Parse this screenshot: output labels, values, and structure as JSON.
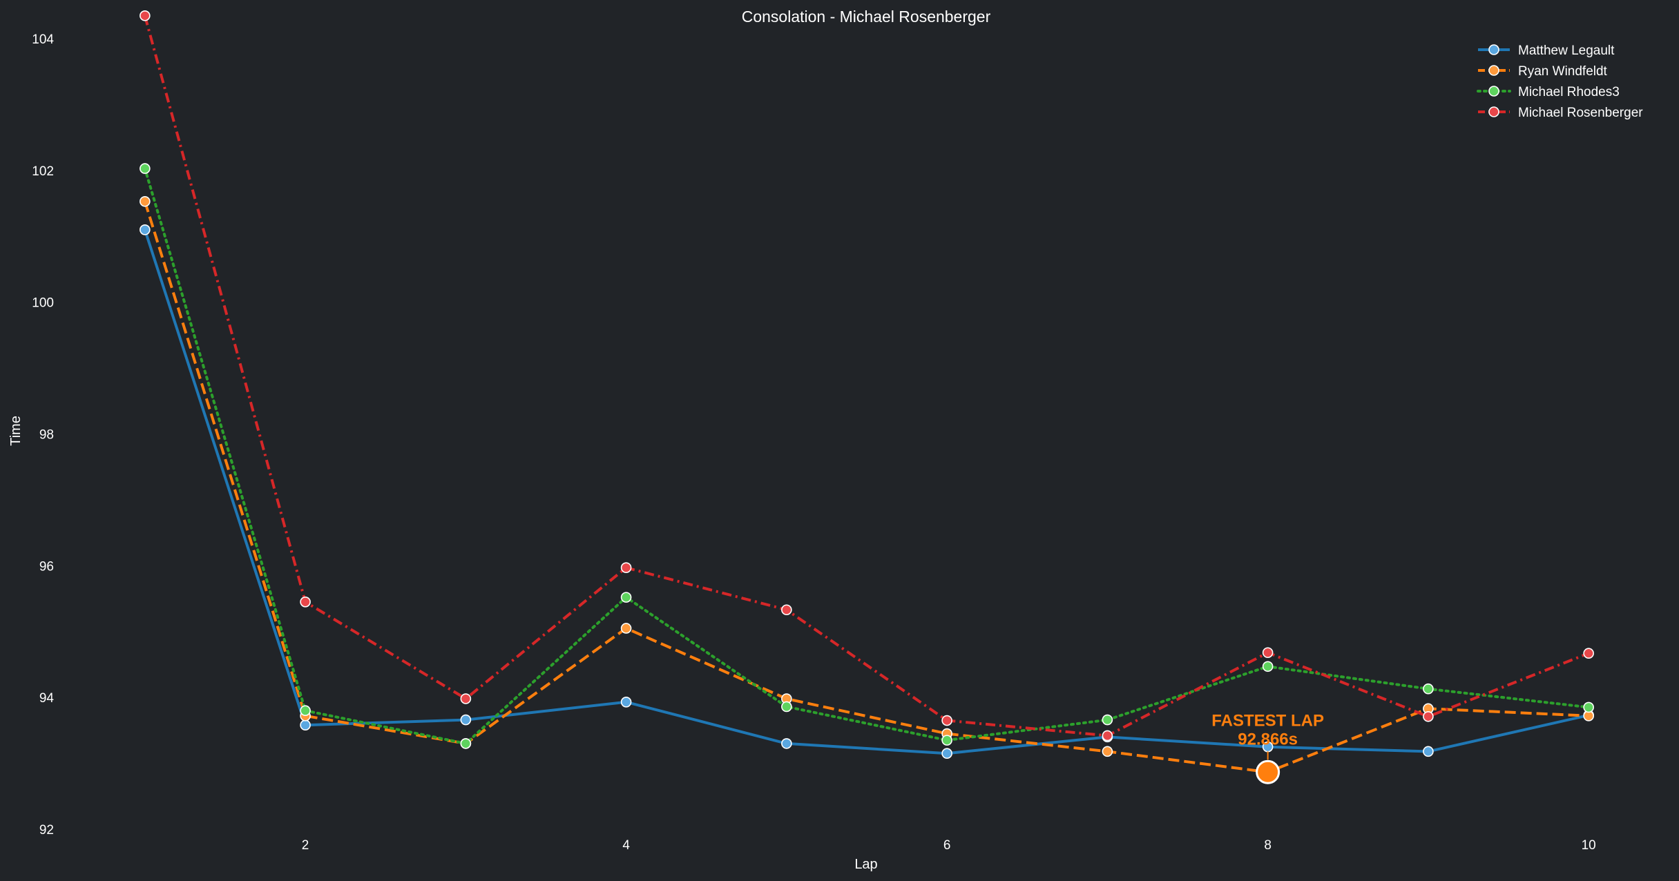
{
  "chart_data": {
    "type": "line",
    "title": "Consolation - Michael Rosenberger",
    "xlabel": "Lap",
    "ylabel": "Time",
    "x": [
      1,
      2,
      3,
      4,
      5,
      6,
      7,
      8,
      9,
      10
    ],
    "xlim": [
      0.85,
      10.15
    ],
    "ylim": [
      91.8,
      104.4
    ],
    "xticks": [
      2,
      4,
      6,
      8,
      10
    ],
    "yticks": [
      92,
      94,
      96,
      98,
      100,
      102,
      104
    ],
    "grid": false,
    "legend_position": "top-right",
    "background": "#212428",
    "series": [
      {
        "name": "Matthew Legault",
        "color": "#1f77b4",
        "marker_fill": "#5aa7e0",
        "style": "solid",
        "values": [
          101.1,
          93.58,
          93.66,
          93.93,
          93.3,
          93.15,
          93.4,
          93.25,
          93.18,
          93.73
        ]
      },
      {
        "name": "Ryan Windfeldt",
        "color": "#ff7f0e",
        "marker_fill": "#ff9a3c",
        "style": "dashed",
        "values": [
          101.53,
          93.72,
          93.3,
          95.05,
          93.98,
          93.45,
          93.18,
          92.866,
          93.83,
          93.72
        ]
      },
      {
        "name": "Michael Rhodes3",
        "color": "#2ca02c",
        "marker_fill": "#5ed35e",
        "style": "dotted",
        "values": [
          102.03,
          93.8,
          93.3,
          95.52,
          93.86,
          93.35,
          93.66,
          94.47,
          94.13,
          93.85
        ]
      },
      {
        "name": "Michael Rosenberger",
        "color": "#d62728",
        "marker_fill": "#e8474a",
        "style": "dashdot",
        "values": [
          104.35,
          95.45,
          93.98,
          95.97,
          95.33,
          93.65,
          93.42,
          94.68,
          93.71,
          94.67
        ]
      }
    ],
    "annotation": {
      "label": "FASTEST LAP",
      "value_text": "92.866s",
      "x": 8,
      "y": 92.866,
      "series": "Ryan Windfeldt",
      "color": "#ff7f0e"
    }
  }
}
